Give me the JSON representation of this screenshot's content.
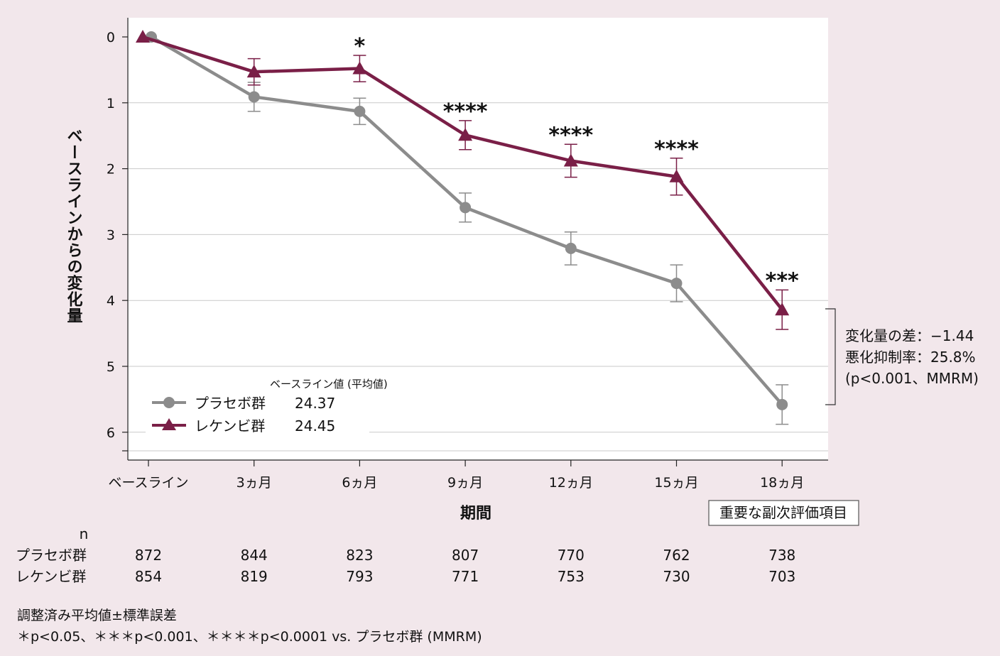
{
  "colors": {
    "background": "#f2e7eb",
    "plot_background": "#ffffff",
    "placebo": "#8c8c8c",
    "lecanemab": "#7a1f47"
  },
  "chart_data": {
    "type": "line",
    "xlabel": "期間",
    "ylabel": "ベースラインからの変化量",
    "categories": [
      "ベースライン",
      "3ヵ月",
      "6ヵ月",
      "9ヵ月",
      "12ヵ月",
      "15ヵ月",
      "18ヵ月"
    ],
    "y_ticks": [
      "0",
      "1",
      "2",
      "3",
      "4",
      "5",
      "6"
    ],
    "ylim": [
      0,
      6.5
    ],
    "y_axis_inverted": true,
    "grid": "horizontal",
    "series": [
      {
        "name": "プラセボ群",
        "marker": "circle",
        "baseline_mean": "24.37",
        "values": [
          0.0,
          0.91,
          1.13,
          2.59,
          3.21,
          3.74,
          5.58
        ],
        "errors": [
          0.0,
          0.22,
          0.2,
          0.22,
          0.25,
          0.28,
          0.3
        ]
      },
      {
        "name": "レケンビ群",
        "marker": "triangle",
        "baseline_mean": "24.45",
        "values": [
          0.0,
          0.53,
          0.48,
          1.49,
          1.88,
          2.12,
          4.14
        ],
        "errors": [
          0.0,
          0.2,
          0.2,
          0.22,
          0.25,
          0.28,
          0.3
        ]
      }
    ],
    "significance": [
      "",
      "",
      "*",
      "****",
      "****",
      "****",
      "***"
    ],
    "legend": {
      "title": "ベースライン値 (平均値)",
      "placement": "bottom-left"
    },
    "annotation": {
      "lines": [
        "変化量の差：−1.44",
        "悪化抑制率：25.8%",
        "(p<0.001、MMRM)"
      ]
    },
    "badge": "重要な副次評価項目"
  },
  "n_table": {
    "header": "n",
    "rows": [
      {
        "label": "プラセボ群",
        "values": [
          "872",
          "844",
          "823",
          "807",
          "770",
          "762",
          "738"
        ]
      },
      {
        "label": "レケンビ群",
        "values": [
          "854",
          "819",
          "793",
          "771",
          "753",
          "730",
          "703"
        ]
      }
    ]
  },
  "notes": [
    "調整済み平均値±標準誤差",
    "＊p<0.05、＊＊＊p<0.001、＊＊＊＊p<0.0001 vs. プラセボ群 (MMRM)"
  ]
}
